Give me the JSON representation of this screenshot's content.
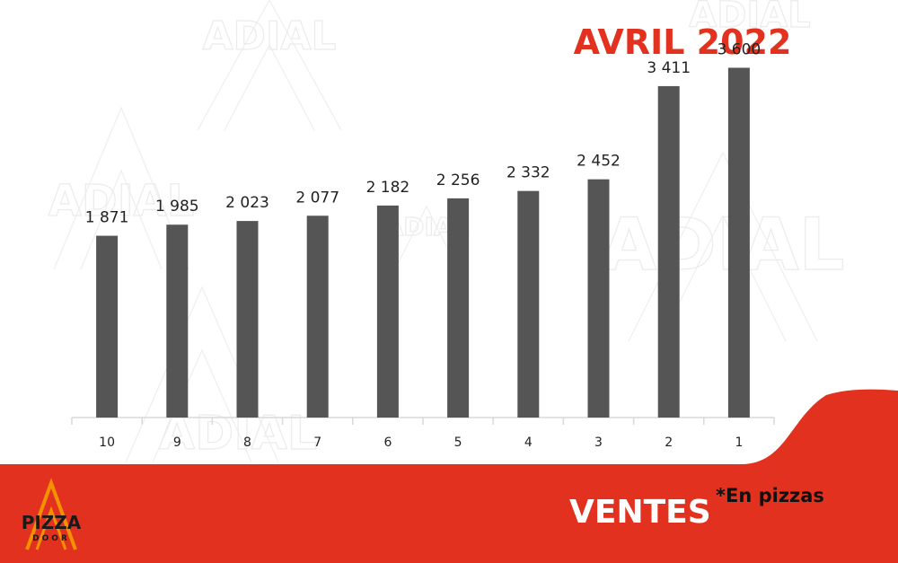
{
  "header": {
    "month_title": "AVRIL 2022"
  },
  "footer": {
    "metric_label": "VENTES",
    "unit_note": "*En pizzas"
  },
  "logo": {
    "main": "PIZZA",
    "sub": "DOOR"
  },
  "watermark": {
    "text": "ADIAL"
  },
  "colors": {
    "accent": "#e2321f",
    "bar": "#555555",
    "axis": "#d9d9d9",
    "logo_orange": "#f39200"
  },
  "chart_data": {
    "type": "bar",
    "categories": [
      "10",
      "9",
      "8",
      "7",
      "6",
      "5",
      "4",
      "3",
      "2",
      "1"
    ],
    "values": [
      1871,
      1985,
      2023,
      2077,
      2182,
      2256,
      2332,
      2452,
      3411,
      3600
    ],
    "value_labels": [
      "1 871",
      "1 985",
      "2 023",
      "2 077",
      "2 182",
      "2 256",
      "2 332",
      "2 452",
      "3 411",
      "3 600"
    ],
    "ylim": [
      0,
      3900
    ],
    "grid": false,
    "legend": "none"
  }
}
